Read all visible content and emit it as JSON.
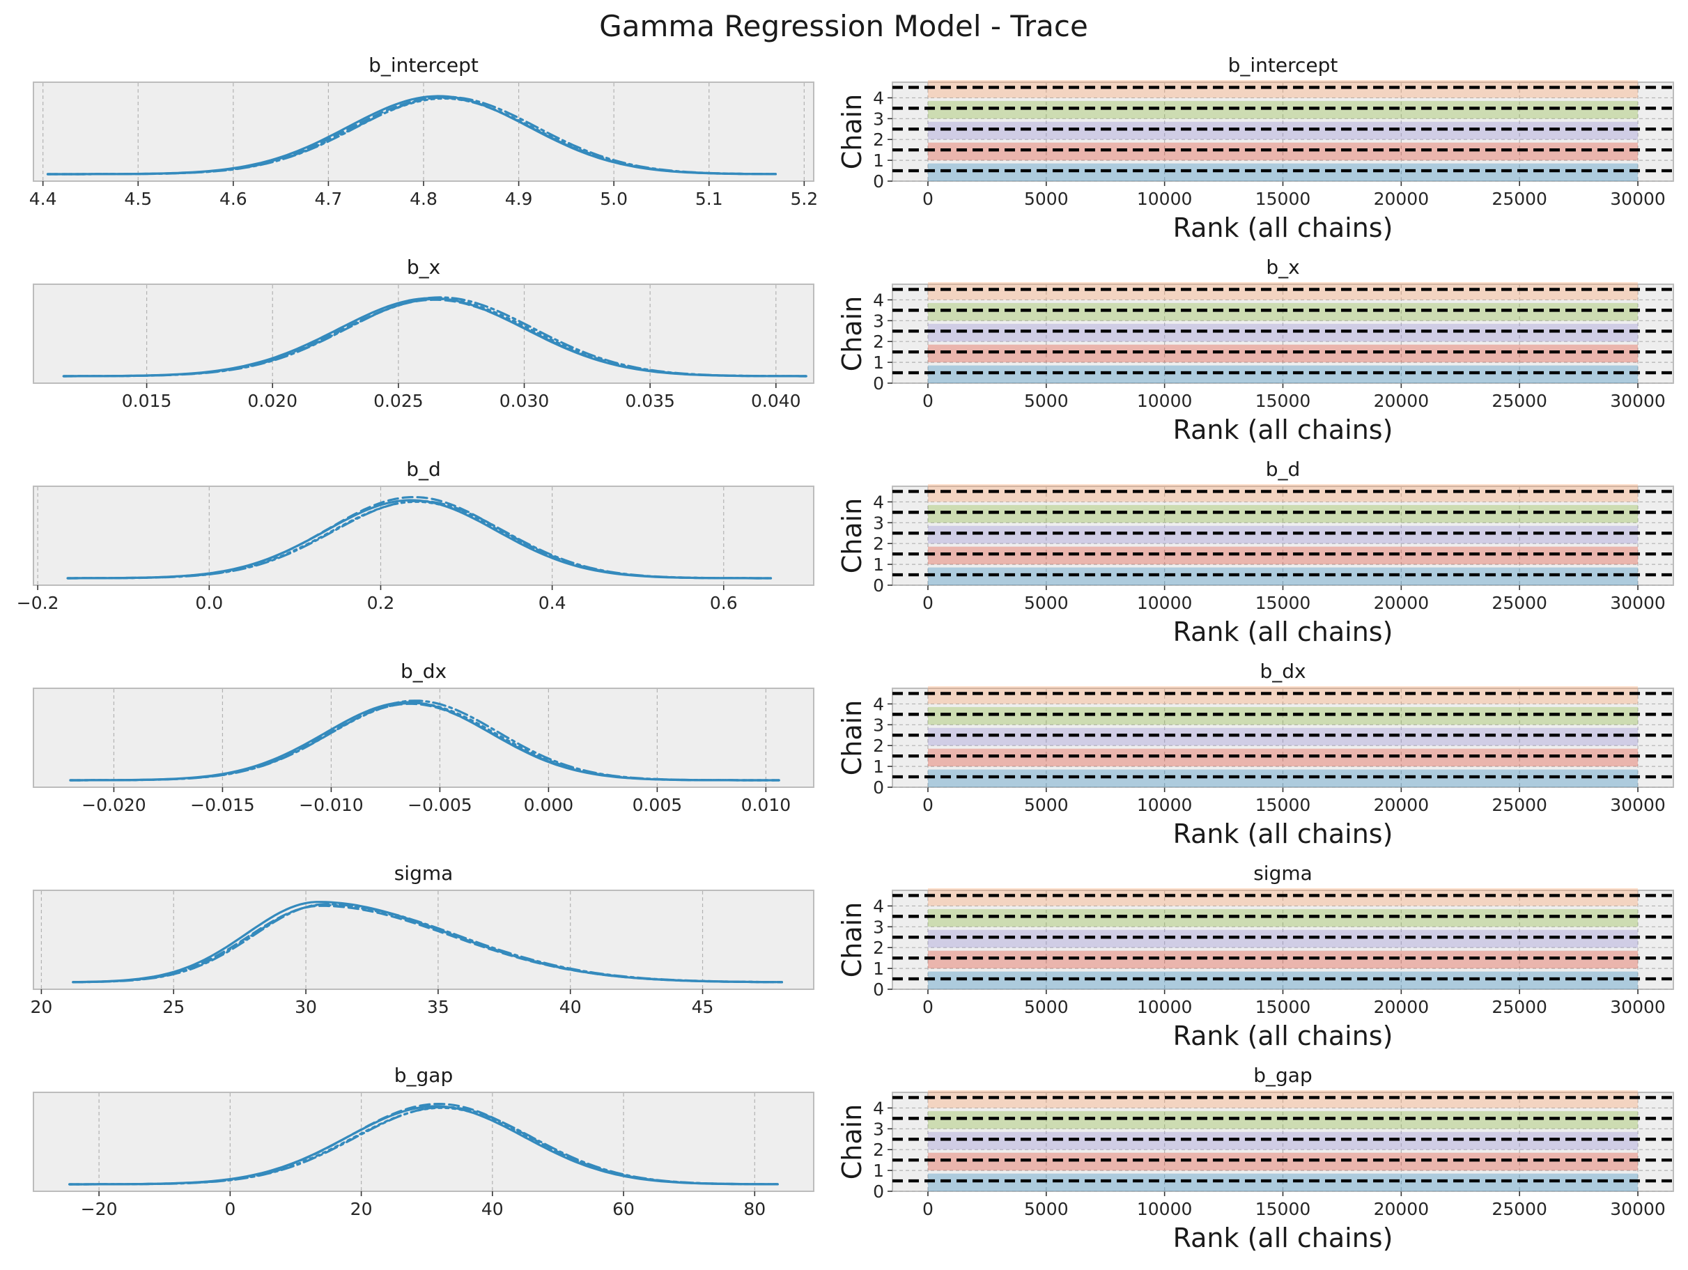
{
  "title": "Gamma Regression Model - Trace",
  "colors": {
    "kde": "#348abd",
    "chains": [
      "#348abd",
      "#e24a33",
      "#988ed5",
      "#8eba42",
      "#fba26d"
    ]
  },
  "chart_data": [
    {
      "type": "line",
      "variable": "b_intercept",
      "title": "b_intercept",
      "xlim": [
        4.39,
        5.21
      ],
      "xticks": [
        4.4,
        4.5,
        4.6,
        4.7,
        4.8,
        4.9,
        5.0,
        5.1,
        5.2
      ],
      "xtick_labels": [
        "4.4",
        "4.5",
        "4.6",
        "4.7",
        "4.8",
        "4.9",
        "5.0",
        "5.1",
        "5.2"
      ],
      "grid": true,
      "kde": {
        "range": [
          4.405,
          5.17
        ],
        "mean": 4.82,
        "sd": 0.095
      },
      "series": [
        {
          "label": "0",
          "y_peak": 1.0
        },
        {
          "label": "1",
          "y_peak": 0.98
        },
        {
          "label": "2",
          "y_peak": 0.97
        },
        {
          "label": "3",
          "y_peak": 0.99
        }
      ]
    },
    {
      "type": "bar",
      "variable": "b_intercept",
      "title": "b_intercept",
      "xlabel": "Rank (all chains)",
      "ylabel": "Chain",
      "xlim": [
        -1500,
        31500
      ],
      "xticks": [
        0,
        5000,
        10000,
        15000,
        20000,
        25000,
        30000
      ],
      "xtick_labels": [
        "0",
        "5000",
        "10000",
        "15000",
        "20000",
        "25000",
        "30000"
      ],
      "ylim": [
        0,
        4.75
      ],
      "yticks": [
        0,
        1,
        2,
        3,
        4
      ],
      "ytick_labels": [
        "0",
        "1",
        "2",
        "3",
        "4"
      ],
      "chains": [
        0,
        1,
        2,
        3,
        4
      ],
      "rank_range": [
        0,
        30000
      ],
      "grid": true
    },
    {
      "type": "line",
      "variable": "b_x",
      "title": "b_x",
      "xlim": [
        0.0105,
        0.0415
      ],
      "xticks": [
        0.015,
        0.02,
        0.025,
        0.03,
        0.035,
        0.04
      ],
      "xtick_labels": [
        "0.015",
        "0.020",
        "0.025",
        "0.030",
        "0.035",
        "0.040"
      ],
      "grid": true,
      "kde": {
        "range": [
          0.0117,
          0.0412
        ],
        "mean": 0.0265,
        "sd": 0.0037
      },
      "series": [
        {
          "label": "0",
          "y_peak": 1.0
        },
        {
          "label": "1",
          "y_peak": 0.98
        },
        {
          "label": "2",
          "y_peak": 0.99
        },
        {
          "label": "3",
          "y_peak": 1.01
        }
      ]
    },
    {
      "type": "bar",
      "variable": "b_x",
      "title": "b_x",
      "xlabel": "Rank (all chains)",
      "ylabel": "Chain",
      "xlim": [
        -1500,
        31500
      ],
      "xticks": [
        0,
        5000,
        10000,
        15000,
        20000,
        25000,
        30000
      ],
      "xtick_labels": [
        "0",
        "5000",
        "10000",
        "15000",
        "20000",
        "25000",
        "30000"
      ],
      "ylim": [
        0,
        4.75
      ],
      "yticks": [
        0,
        1,
        2,
        3,
        4
      ],
      "ytick_labels": [
        "0",
        "1",
        "2",
        "3",
        "4"
      ],
      "chains": [
        0,
        1,
        2,
        3,
        4
      ],
      "rank_range": [
        0,
        30000
      ],
      "grid": true
    },
    {
      "type": "line",
      "variable": "b_d",
      "title": "b_d",
      "xlim": [
        -0.205,
        0.705
      ],
      "xticks": [
        -0.2,
        0.0,
        0.2,
        0.4,
        0.6
      ],
      "xtick_labels": [
        "−0.2",
        "0.0",
        "0.2",
        "0.4",
        "0.6"
      ],
      "grid": true,
      "kde": {
        "range": [
          -0.165,
          0.655
        ],
        "mean": 0.24,
        "sd": 0.1
      },
      "series": [
        {
          "label": "0",
          "y_peak": 1.0
        },
        {
          "label": "1",
          "y_peak": 1.04
        },
        {
          "label": "2",
          "y_peak": 0.98
        },
        {
          "label": "3",
          "y_peak": 0.99
        }
      ]
    },
    {
      "type": "bar",
      "variable": "b_d",
      "title": "b_d",
      "xlabel": "Rank (all chains)",
      "ylabel": "Chain",
      "xlim": [
        -1500,
        31500
      ],
      "xticks": [
        0,
        5000,
        10000,
        15000,
        20000,
        25000,
        30000
      ],
      "xtick_labels": [
        "0",
        "5000",
        "10000",
        "15000",
        "20000",
        "25000",
        "30000"
      ],
      "ylim": [
        0,
        4.75
      ],
      "yticks": [
        0,
        1,
        2,
        3,
        4
      ],
      "ytick_labels": [
        "0",
        "1",
        "2",
        "3",
        "4"
      ],
      "chains": [
        0,
        1,
        2,
        3,
        4
      ],
      "rank_range": [
        0,
        30000
      ],
      "grid": true
    },
    {
      "type": "line",
      "variable": "b_dx",
      "title": "b_dx",
      "xlim": [
        -0.0237,
        0.0122
      ],
      "xticks": [
        -0.02,
        -0.015,
        -0.01,
        -0.005,
        0.0,
        0.005,
        0.01
      ],
      "xtick_labels": [
        "−0.020",
        "−0.015",
        "−0.010",
        "−0.005",
        "0.000",
        "0.005",
        "0.010"
      ],
      "grid": true,
      "kde": {
        "range": [
          -0.022,
          0.0106
        ],
        "mean": -0.0063,
        "sd": 0.0038
      },
      "series": [
        {
          "label": "0",
          "y_peak": 1.0
        },
        {
          "label": "1",
          "y_peak": 0.98
        },
        {
          "label": "2",
          "y_peak": 0.99
        },
        {
          "label": "3",
          "y_peak": 1.02
        }
      ]
    },
    {
      "type": "bar",
      "variable": "b_dx",
      "title": "b_dx",
      "xlabel": "Rank (all chains)",
      "ylabel": "Chain",
      "xlim": [
        -1500,
        31500
      ],
      "xticks": [
        0,
        5000,
        10000,
        15000,
        20000,
        25000,
        30000
      ],
      "xtick_labels": [
        "0",
        "5000",
        "10000",
        "15000",
        "20000",
        "25000",
        "30000"
      ],
      "ylim": [
        0,
        4.75
      ],
      "yticks": [
        0,
        1,
        2,
        3,
        4
      ],
      "ytick_labels": [
        "0",
        "1",
        "2",
        "3",
        "4"
      ],
      "chains": [
        0,
        1,
        2,
        3,
        4
      ],
      "rank_range": [
        0,
        30000
      ],
      "grid": true
    },
    {
      "type": "line",
      "variable": "sigma",
      "title": "sigma",
      "xlim": [
        19.7,
        49.2
      ],
      "xticks": [
        20,
        25,
        30,
        35,
        40,
        45
      ],
      "xtick_labels": [
        "20",
        "25",
        "30",
        "35",
        "40",
        "45"
      ],
      "grid": true,
      "kde": {
        "range": [
          21.2,
          48.0
        ],
        "mean": 30.6,
        "sd": 3.1,
        "skew": 1.6
      },
      "series": [
        {
          "label": "0",
          "y_peak": 1.03
        },
        {
          "label": "1",
          "y_peak": 0.98
        },
        {
          "label": "2",
          "y_peak": 0.99
        },
        {
          "label": "3",
          "y_peak": 1.0
        }
      ]
    },
    {
      "type": "bar",
      "variable": "sigma",
      "title": "sigma",
      "xlabel": "Rank (all chains)",
      "ylabel": "Chain",
      "xlim": [
        -1500,
        31500
      ],
      "xticks": [
        0,
        5000,
        10000,
        15000,
        20000,
        25000,
        30000
      ],
      "xtick_labels": [
        "0",
        "5000",
        "10000",
        "15000",
        "20000",
        "25000",
        "30000"
      ],
      "ylim": [
        0,
        4.75
      ],
      "yticks": [
        0,
        1,
        2,
        3,
        4
      ],
      "ytick_labels": [
        "0",
        "1",
        "2",
        "3",
        "4"
      ],
      "chains": [
        0,
        1,
        2,
        3,
        4
      ],
      "rank_range": [
        0,
        30000
      ],
      "grid": true
    },
    {
      "type": "line",
      "variable": "b_gap",
      "title": "b_gap",
      "xlim": [
        -30,
        89
      ],
      "xticks": [
        -20,
        0,
        20,
        40,
        60,
        80
      ],
      "xtick_labels": [
        "−20",
        "0",
        "20",
        "40",
        "60",
        "80"
      ],
      "grid": true,
      "kde": {
        "range": [
          -24.5,
          83.5
        ],
        "mean": 32,
        "sd": 13.5
      },
      "series": [
        {
          "label": "0",
          "y_peak": 1.0
        },
        {
          "label": "1",
          "y_peak": 1.03
        },
        {
          "label": "2",
          "y_peak": 0.98
        },
        {
          "label": "3",
          "y_peak": 0.99
        }
      ]
    },
    {
      "type": "bar",
      "variable": "b_gap",
      "title": "b_gap",
      "xlabel": "Rank (all chains)",
      "ylabel": "Chain",
      "xlim": [
        -1500,
        31500
      ],
      "xticks": [
        0,
        5000,
        10000,
        15000,
        20000,
        25000,
        30000
      ],
      "xtick_labels": [
        "0",
        "5000",
        "10000",
        "15000",
        "20000",
        "25000",
        "30000"
      ],
      "ylim": [
        0,
        4.75
      ],
      "yticks": [
        0,
        1,
        2,
        3,
        4
      ],
      "ytick_labels": [
        "0",
        "1",
        "2",
        "3",
        "4"
      ],
      "chains": [
        0,
        1,
        2,
        3,
        4
      ],
      "rank_range": [
        0,
        30000
      ],
      "grid": true
    }
  ]
}
